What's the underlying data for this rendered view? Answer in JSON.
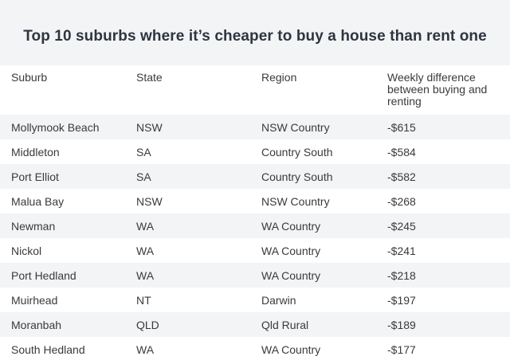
{
  "title": "Top 10 suburbs where it’s cheaper to buy a house than rent one",
  "columns": [
    "Suburb",
    "State",
    "Region",
    "Weekly difference between buying and renting"
  ],
  "rows": [
    [
      "Mollymook Beach",
      "NSW",
      "NSW Country",
      "-$615"
    ],
    [
      "Middleton",
      "SA",
      "Country South",
      "-$584"
    ],
    [
      "Port Elliot",
      "SA",
      "Country South",
      "-$582"
    ],
    [
      "Malua Bay",
      "NSW",
      "NSW Country",
      "-$268"
    ],
    [
      "Newman",
      "WA",
      "WA Country",
      "-$245"
    ],
    [
      "Nickol",
      "WA",
      "WA Country",
      "-$241"
    ],
    [
      "Port Hedland",
      "WA",
      "WA Country",
      "-$218"
    ],
    [
      "Muirhead",
      "NT",
      "Darwin",
      "-$197"
    ],
    [
      "Moranbah",
      "QLD",
      "Qld Rural",
      "-$189"
    ],
    [
      "South Hedland",
      "WA",
      "WA Country",
      "-$177"
    ]
  ],
  "colors": {
    "stripe": "#f2f4f6",
    "title_text": "#2f3440",
    "body_text": "#3a3a3a"
  }
}
